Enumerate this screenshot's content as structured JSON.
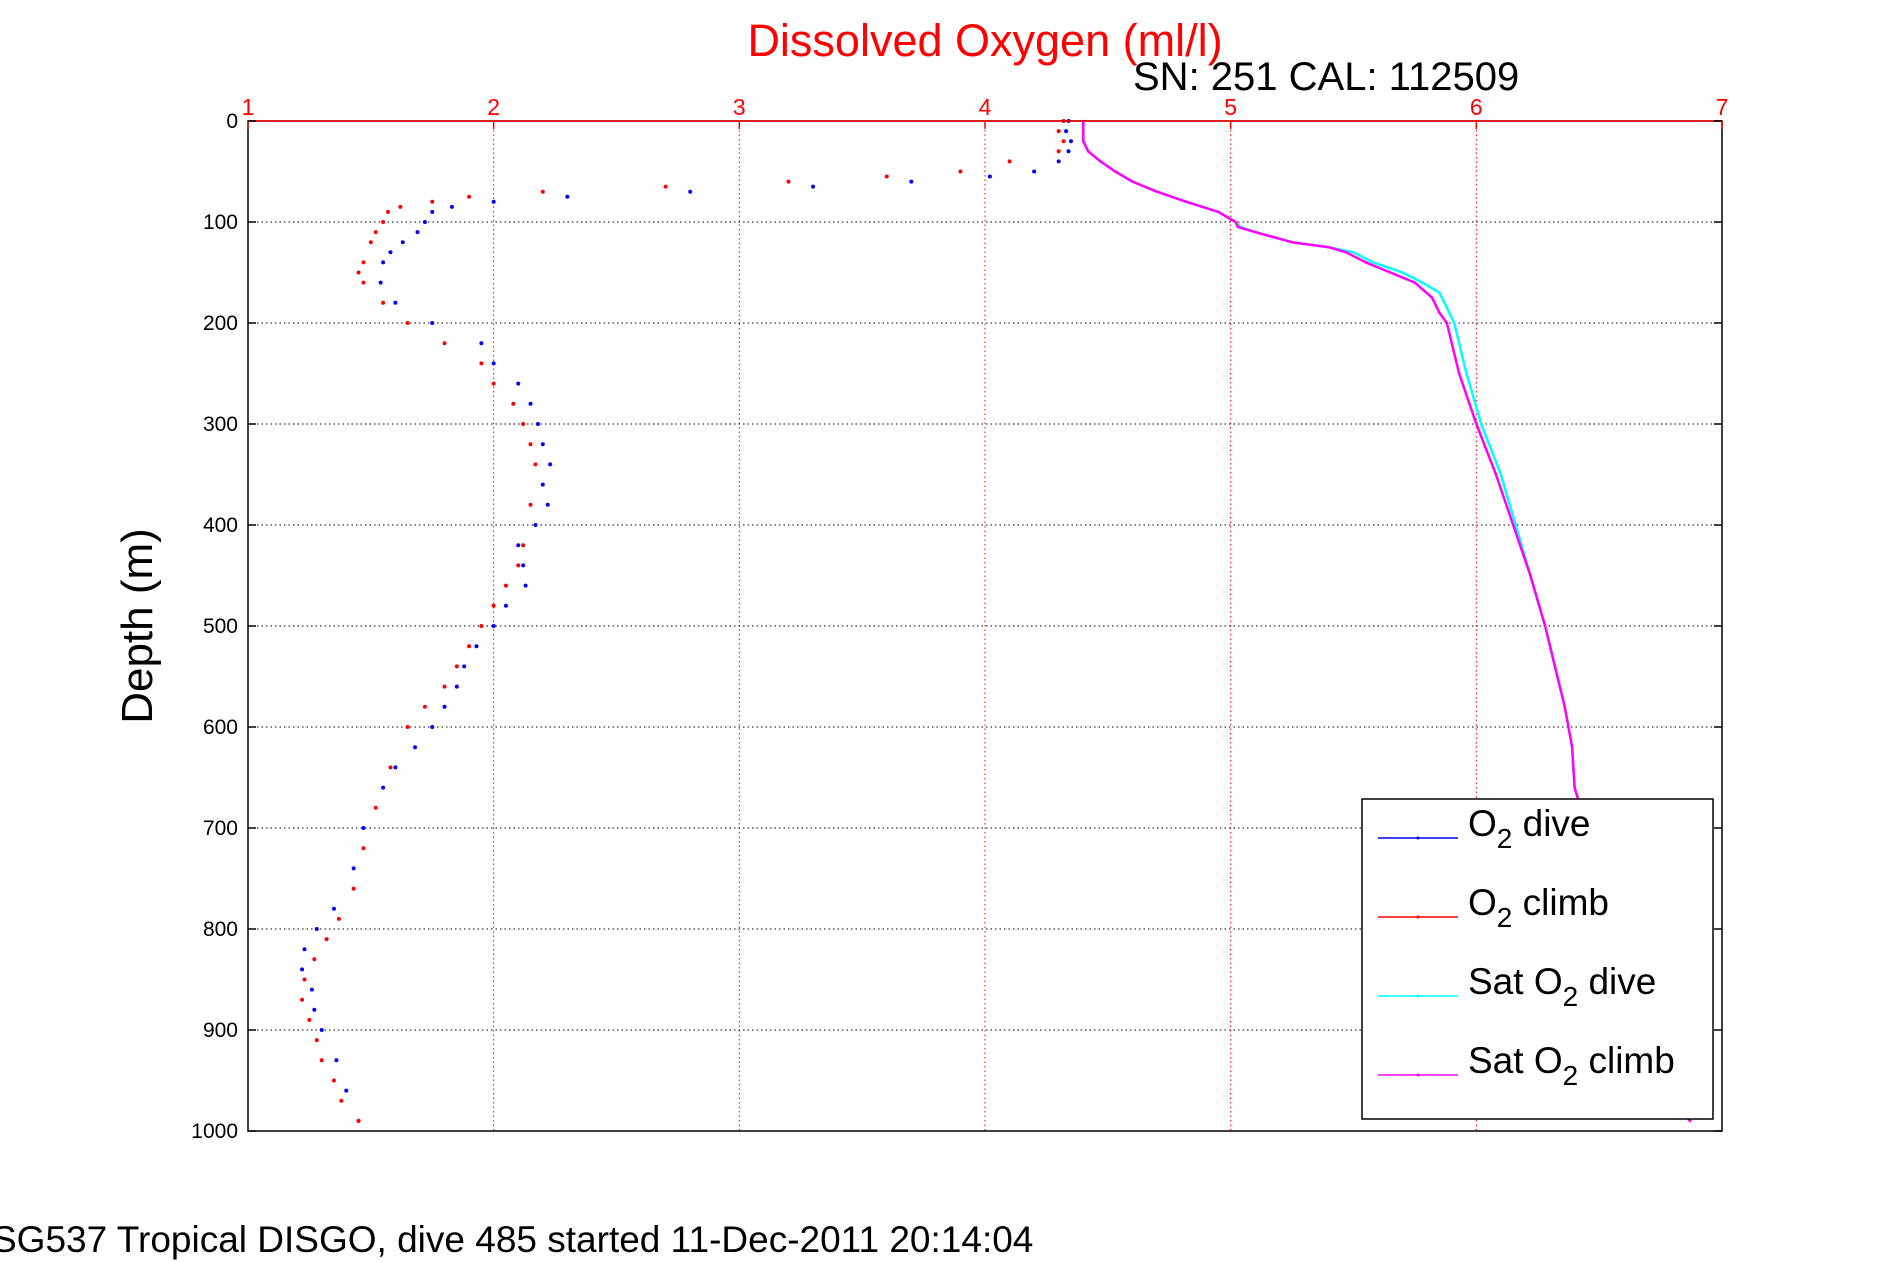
{
  "chart_data": {
    "type": "scatter",
    "title": "Dissolved Oxygen (ml/l)",
    "subtitle": "SN: 251  CAL: 112509",
    "xlabel": "",
    "ylabel": "Depth (m)",
    "xlim": [
      1,
      7
    ],
    "ylim": [
      0,
      1000
    ],
    "y_reversed": true,
    "x_axis_position": "top",
    "x_ticks": [
      "1",
      "2",
      "3",
      "4",
      "5",
      "6",
      "7"
    ],
    "y_ticks": [
      "0",
      "100",
      "200",
      "300",
      "400",
      "500",
      "600",
      "700",
      "800",
      "900",
      "1000"
    ],
    "grid": true,
    "legend_position": "bottom-right",
    "footer": "SG537 Tropical DISGO, dive 485 started 11-Dec-2011 20:14:04",
    "series": [
      {
        "name": "O2 dive",
        "legend_main": "O",
        "legend_sub": "2",
        "legend_rest": " dive",
        "color": "#0000ff",
        "style": "dots",
        "x": [
          4.34,
          4.33,
          4.35,
          4.34,
          4.3,
          4.2,
          4.02,
          3.7,
          3.3,
          2.8,
          2.3,
          2.0,
          1.83,
          1.75,
          1.72,
          1.69,
          1.63,
          1.58,
          1.55,
          1.54,
          1.6,
          1.75,
          1.95,
          2.0,
          2.1,
          2.15,
          2.18,
          2.2,
          2.23,
          2.2,
          2.22,
          2.17,
          2.1,
          2.12,
          2.13,
          2.05,
          2.0,
          1.93,
          1.88,
          1.85,
          1.8,
          1.75,
          1.68,
          1.6,
          1.55,
          1.47,
          1.43,
          1.35,
          1.28,
          1.23,
          1.22,
          1.26,
          1.27,
          1.3,
          1.36,
          1.4,
          1.45
        ],
        "y": [
          0,
          10,
          20,
          30,
          40,
          50,
          55,
          60,
          65,
          70,
          75,
          80,
          85,
          90,
          100,
          110,
          120,
          130,
          140,
          160,
          180,
          200,
          220,
          240,
          260,
          280,
          300,
          320,
          340,
          360,
          380,
          400,
          420,
          440,
          460,
          480,
          500,
          520,
          540,
          560,
          580,
          600,
          620,
          640,
          660,
          700,
          740,
          780,
          800,
          820,
          840,
          860,
          880,
          900,
          930,
          960,
          990
        ]
      },
      {
        "name": "O2 climb",
        "legend_main": "O",
        "legend_sub": "2",
        "legend_rest": " climb",
        "color": "#ff0000",
        "style": "dots",
        "x": [
          4.32,
          4.3,
          4.32,
          4.3,
          4.1,
          3.9,
          3.6,
          3.2,
          2.7,
          2.2,
          1.9,
          1.75,
          1.62,
          1.57,
          1.55,
          1.52,
          1.5,
          1.47,
          1.45,
          1.47,
          1.55,
          1.65,
          1.8,
          1.95,
          2.0,
          2.08,
          2.12,
          2.15,
          2.17,
          2.15,
          2.12,
          2.1,
          2.05,
          2.0,
          1.95,
          1.9,
          1.85,
          1.8,
          1.72,
          1.65,
          1.58,
          1.52,
          1.47,
          1.43,
          1.37,
          1.32,
          1.27,
          1.23,
          1.22,
          1.25,
          1.28,
          1.3,
          1.35,
          1.38,
          1.45
        ],
        "y": [
          0,
          10,
          20,
          30,
          40,
          50,
          55,
          60,
          65,
          70,
          75,
          80,
          85,
          90,
          100,
          110,
          120,
          140,
          150,
          160,
          180,
          200,
          220,
          240,
          260,
          280,
          300,
          320,
          340,
          380,
          420,
          440,
          460,
          480,
          500,
          520,
          540,
          560,
          580,
          600,
          640,
          680,
          720,
          760,
          790,
          810,
          830,
          850,
          870,
          890,
          910,
          930,
          950,
          970,
          990
        ]
      },
      {
        "name": "Sat O2 dive",
        "legend_main": "Sat O",
        "legend_sub": "2",
        "legend_rest": " dive",
        "color": "#00ffff",
        "style": "line",
        "x": [
          4.4,
          4.4,
          4.42,
          4.47,
          4.53,
          4.6,
          4.7,
          4.82,
          4.95,
          5.02,
          5.04,
          5.1,
          5.25,
          5.4,
          5.5,
          5.58,
          5.7,
          5.78,
          5.85,
          5.88,
          5.91,
          5.96,
          6.02,
          6.1,
          6.16,
          6.22,
          6.28,
          6.32,
          6.36,
          6.39,
          6.4,
          6.45,
          6.5,
          6.52,
          6.55,
          6.6,
          6.65,
          6.72,
          6.8,
          6.87
        ],
        "y": [
          0,
          20,
          30,
          40,
          50,
          60,
          70,
          80,
          90,
          100,
          105,
          110,
          120,
          125,
          130,
          140,
          150,
          160,
          170,
          185,
          200,
          250,
          300,
          350,
          400,
          450,
          500,
          540,
          580,
          620,
          660,
          700,
          740,
          780,
          820,
          860,
          900,
          940,
          970,
          990
        ]
      },
      {
        "name": "Sat O2 climb",
        "legend_main": "Sat O",
        "legend_sub": "2",
        "legend_rest": " climb",
        "color": "#ff00ff",
        "style": "line",
        "x": [
          4.4,
          4.4,
          4.42,
          4.47,
          4.53,
          4.6,
          4.7,
          4.82,
          4.95,
          5.02,
          5.03,
          5.1,
          5.25,
          5.4,
          5.47,
          5.55,
          5.65,
          5.75,
          5.82,
          5.85,
          5.88,
          5.93,
          6.0,
          6.08,
          6.15,
          6.22,
          6.28,
          6.32,
          6.36,
          6.39,
          6.4,
          6.45,
          6.5,
          6.52,
          6.55,
          6.6,
          6.65,
          6.72,
          6.8,
          6.87
        ],
        "y": [
          0,
          20,
          30,
          40,
          50,
          60,
          70,
          80,
          90,
          100,
          105,
          110,
          120,
          125,
          130,
          140,
          150,
          160,
          175,
          190,
          200,
          250,
          300,
          350,
          400,
          450,
          500,
          540,
          580,
          620,
          660,
          700,
          740,
          780,
          820,
          860,
          900,
          940,
          970,
          990
        ]
      }
    ]
  }
}
